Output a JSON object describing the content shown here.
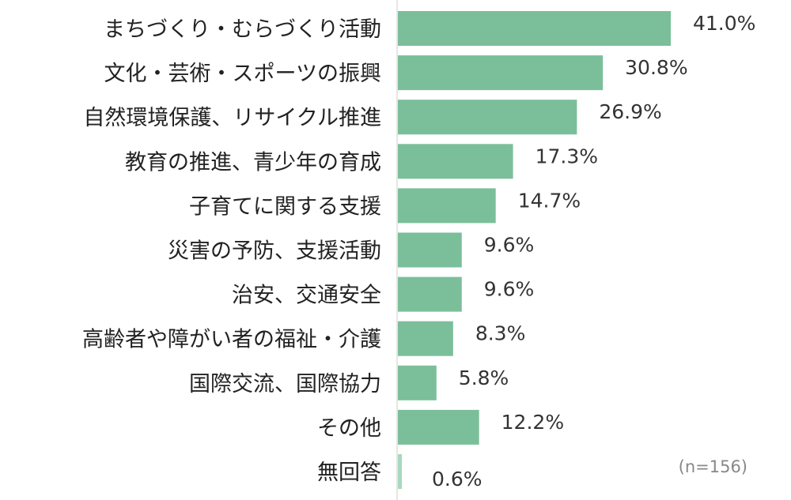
{
  "chart_data": {
    "type": "bar",
    "orientation": "horizontal",
    "title": "",
    "xlabel": "",
    "ylabel": "",
    "xlim": [
      0,
      41
    ],
    "grid": false,
    "categories": [
      "まちづくり・むらづくり活動",
      "文化・芸術・スポーツの振興",
      "自然環境保護、リサイクル推進",
      "教育の推進、青少年の育成",
      "子育てに関する支援",
      "災害の予防、支援活動",
      "治安、交通安全",
      "高齢者や障がい者の福祉・介護",
      "国際交流、国際協力",
      "その他",
      "無回答"
    ],
    "values": [
      41.0,
      30.8,
      26.9,
      17.3,
      14.7,
      9.6,
      9.6,
      8.3,
      5.8,
      12.2,
      0.6
    ],
    "value_labels": [
      "41.0%",
      "30.8%",
      "26.9%",
      "17.3%",
      "14.7%",
      "9.6%",
      "9.6%",
      "8.3%",
      "5.8%",
      "12.2%",
      "0.6%"
    ],
    "annotation": "(n=156)",
    "colors": {
      "bar": "#7bbf9a",
      "bar_light": "#a9d8bf",
      "axis": "#e6e6e6"
    }
  }
}
